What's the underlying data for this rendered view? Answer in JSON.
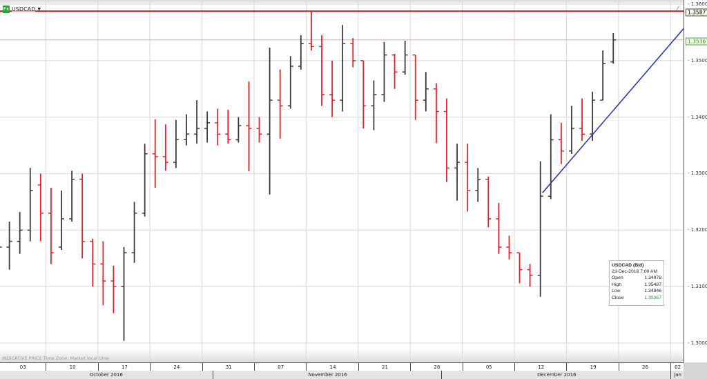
{
  "header": {
    "symbol": "USDCAD",
    "symbol_icon": "fx-icon",
    "dropdown_icon": "caret-down-icon"
  },
  "footer_note": "INDICATIVE PRICE   Time Zone: Market local time",
  "colors": {
    "up": "#3a3a3a",
    "down": "#e8202a",
    "resistance": "#e01a22",
    "last_price_line": "#f4a0a4",
    "trendline": "#2a3fa0",
    "grid": "#dddddd"
  },
  "chart_data": {
    "type": "ohlc",
    "symbol": "USDCAD",
    "ylim": [
      1.295,
      1.3605
    ],
    "grid": true,
    "y_ticks": [
      "1.36000",
      "1.35000",
      "1.34000",
      "1.33000",
      "1.32000",
      "1.31000",
      "1.30000"
    ],
    "week_labels": [
      "03",
      "10",
      "17",
      "24",
      "31",
      "07",
      "14",
      "21",
      "28",
      "05",
      "12",
      "19",
      "26",
      "02"
    ],
    "month_labels": [
      "October 2016",
      "November 2016",
      "December 2016",
      "Jan"
    ],
    "bars": [
      [
        "2016-10-03",
        1.313,
        1.318,
        1.311,
        1.317
      ],
      [
        "2016-10-04",
        1.317,
        1.3215,
        1.313,
        1.318
      ],
      [
        "2016-10-05",
        1.318,
        1.3232,
        1.3158,
        1.32
      ],
      [
        "2016-10-06",
        1.32,
        1.331,
        1.318,
        1.327
      ],
      [
        "2016-10-07",
        1.328,
        1.33,
        1.318,
        1.323
      ],
      [
        "2016-10-10",
        1.323,
        1.3275,
        1.314,
        1.316
      ],
      [
        "2016-10-11",
        1.317,
        1.327,
        1.3165,
        1.322
      ],
      [
        "2016-10-12",
        1.322,
        1.3305,
        1.3215,
        1.329
      ],
      [
        "2016-10-13",
        1.329,
        1.33,
        1.315,
        1.318
      ],
      [
        "2016-10-14",
        1.318,
        1.3185,
        1.31,
        1.314
      ],
      [
        "2016-10-17",
        1.314,
        1.318,
        1.3067,
        1.311
      ],
      [
        "2016-10-18",
        1.311,
        1.3137,
        1.3053,
        1.31
      ],
      [
        "2016-10-19",
        1.31,
        1.317,
        1.3004,
        1.316
      ],
      [
        "2016-10-20",
        1.316,
        1.325,
        1.3142,
        1.323
      ],
      [
        "2016-10-21",
        1.323,
        1.3353,
        1.3224,
        1.3335
      ],
      [
        "2016-10-24",
        1.3335,
        1.3396,
        1.3275,
        1.333
      ],
      [
        "2016-10-25",
        1.333,
        1.3387,
        1.3305,
        1.332
      ],
      [
        "2016-10-26",
        1.332,
        1.3395,
        1.331,
        1.336
      ],
      [
        "2016-10-27",
        1.336,
        1.3405,
        1.335,
        1.337
      ],
      [
        "2016-10-28",
        1.337,
        1.343,
        1.3353,
        1.338
      ],
      [
        "2016-10-31",
        1.338,
        1.341,
        1.3355,
        1.339
      ],
      [
        "2016-11-01",
        1.339,
        1.3415,
        1.335,
        1.337
      ],
      [
        "2016-11-02",
        1.337,
        1.3413,
        1.3353,
        1.336
      ],
      [
        "2016-11-03",
        1.336,
        1.34,
        1.3355,
        1.3385
      ],
      [
        "2016-11-04",
        1.3385,
        1.3463,
        1.3304,
        1.338
      ],
      [
        "2016-11-07",
        1.338,
        1.34,
        1.3355,
        1.337
      ],
      [
        "2016-11-08",
        1.337,
        1.3523,
        1.3263,
        1.343
      ],
      [
        "2016-11-09",
        1.343,
        1.3484,
        1.3362,
        1.342
      ],
      [
        "2016-11-10",
        1.342,
        1.3508,
        1.3415,
        1.349
      ],
      [
        "2016-11-11",
        1.349,
        1.3545,
        1.3484,
        1.353
      ],
      [
        "2016-11-14",
        1.353,
        1.3587,
        1.3518,
        1.3525
      ],
      [
        "2016-11-15",
        1.3525,
        1.3545,
        1.342,
        1.344
      ],
      [
        "2016-11-16",
        1.344,
        1.35,
        1.34,
        1.343
      ],
      [
        "2016-11-17",
        1.343,
        1.3563,
        1.341,
        1.353
      ],
      [
        "2016-11-18",
        1.353,
        1.354,
        1.3488,
        1.35
      ],
      [
        "2016-11-21",
        1.35,
        1.35,
        1.338,
        1.342
      ],
      [
        "2016-11-22",
        1.342,
        1.3465,
        1.3377,
        1.344
      ],
      [
        "2016-11-23",
        1.344,
        1.3533,
        1.3427,
        1.351
      ],
      [
        "2016-11-24",
        1.351,
        1.3512,
        1.345,
        1.348
      ],
      [
        "2016-11-25",
        1.348,
        1.3535,
        1.3475,
        1.351
      ],
      [
        "2016-11-28",
        1.351,
        1.351,
        1.3395,
        1.343
      ],
      [
        "2016-11-29",
        1.343,
        1.348,
        1.341,
        1.345
      ],
      [
        "2016-11-30",
        1.345,
        1.346,
        1.3354,
        1.341
      ],
      [
        "2016-12-01",
        1.341,
        1.3433,
        1.3285,
        1.331
      ],
      [
        "2016-12-02",
        1.331,
        1.3353,
        1.3252,
        1.332
      ],
      [
        "2016-12-05",
        1.332,
        1.3353,
        1.3233,
        1.327
      ],
      [
        "2016-12-06",
        1.327,
        1.331,
        1.325,
        1.329
      ],
      [
        "2016-12-07",
        1.329,
        1.3295,
        1.3205,
        1.322
      ],
      [
        "2016-12-08",
        1.322,
        1.3248,
        1.3158,
        1.317
      ],
      [
        "2016-12-09",
        1.317,
        1.319,
        1.3148,
        1.316
      ],
      [
        "2016-12-12",
        1.316,
        1.316,
        1.3106,
        1.313
      ],
      [
        "2016-12-13",
        1.313,
        1.314,
        1.31,
        1.312
      ],
      [
        "2016-12-14",
        1.312,
        1.3322,
        1.3082,
        1.326
      ],
      [
        "2016-12-15",
        1.326,
        1.3405,
        1.3255,
        1.336
      ],
      [
        "2016-12-16",
        1.336,
        1.339,
        1.3317,
        1.334
      ],
      [
        "2016-12-19",
        1.334,
        1.342,
        1.3335,
        1.338
      ],
      [
        "2016-12-20",
        1.338,
        1.3433,
        1.3358,
        1.337
      ],
      [
        "2016-12-21",
        1.337,
        1.3445,
        1.3358,
        1.343
      ],
      [
        "2016-12-22",
        1.343,
        1.3518,
        1.343,
        1.3495
      ],
      [
        "2016-12-23",
        1.34978,
        1.35487,
        1.34946,
        1.35367
      ]
    ],
    "horizontal_lines": [
      {
        "price": 1.35877,
        "label": "1.35877",
        "style": "resistance"
      },
      {
        "price": 1.35367,
        "label": "1.35367",
        "style": "last_price"
      }
    ],
    "trendline": {
      "start": [
        "2016-12-14",
        1.3266
      ],
      "end": [
        "2016-12-26",
        1.3429
      ]
    },
    "tooltip": {
      "title": "USDCAD (Bid)",
      "datetime": "23-Dec-2016 7:00 AM",
      "rows": [
        {
          "label": "Open",
          "value": "1.34978"
        },
        {
          "label": "High",
          "value": "1.35487"
        },
        {
          "label": "Low",
          "value": "1.34946"
        },
        {
          "label": "Close",
          "value": "1.35367"
        }
      ]
    }
  }
}
